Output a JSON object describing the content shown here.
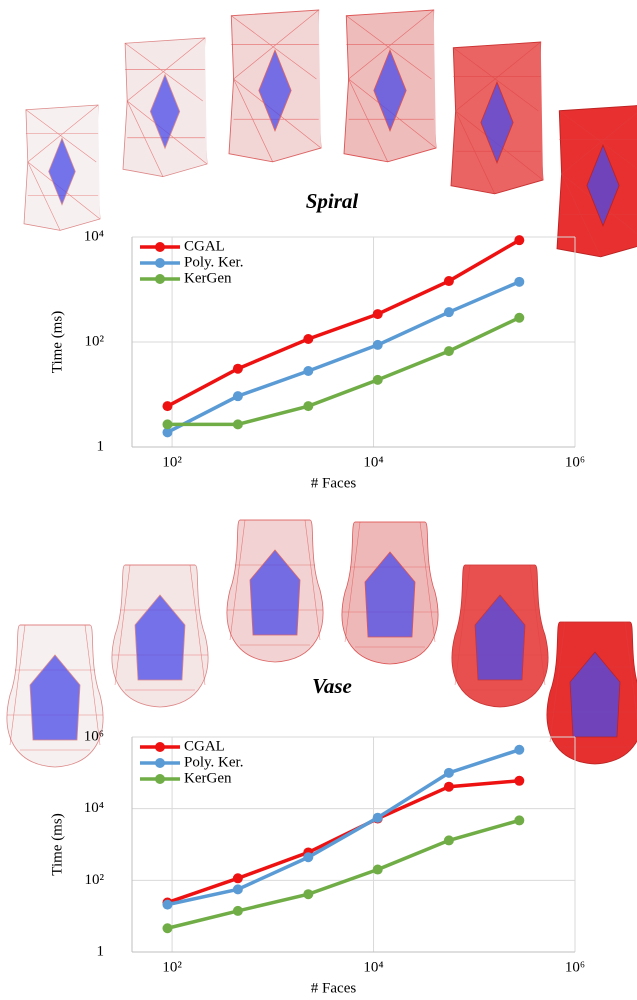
{
  "chart_data": [
    {
      "type": "line",
      "title": "Spiral",
      "x_label": "# Faces",
      "y_label": "Time (ms)",
      "xscale": "log",
      "yscale": "log",
      "grid": true,
      "legend": "upper left",
      "x": [
        90,
        450,
        2250,
        11000,
        56000,
        280000
      ],
      "xlim": [
        40,
        1000000
      ],
      "xticks": [
        {
          "value": 100,
          "label": "10²"
        },
        {
          "value": 10000,
          "label": "10⁴"
        },
        {
          "value": 1000000,
          "label": "10⁶"
        }
      ],
      "ylim": [
        1,
        10000
      ],
      "yticks": [
        1,
        {
          "value": 100,
          "label": "10²"
        },
        {
          "value": 10000,
          "label": "10⁴"
        }
      ],
      "series": [
        {
          "name": "CGAL",
          "color": "#ee1111",
          "values": [
            6,
            31,
            114,
            340,
            1450,
            8700
          ]
        },
        {
          "name": "Poly. Ker.",
          "color": "#5b9bd5",
          "values": [
            1.9,
            9.3,
            28,
            88,
            370,
            1400
          ]
        },
        {
          "name": "KerGen",
          "color": "#70ad47",
          "values": [
            2.7,
            2.7,
            6,
            19,
            67,
            290
          ]
        }
      ]
    },
    {
      "type": "line",
      "title": "Vase",
      "x_label": "# Faces",
      "y_label": "Time (ms)",
      "xscale": "log",
      "yscale": "log",
      "grid": true,
      "legend": "upper left",
      "x": [
        90,
        450,
        2250,
        11000,
        56000,
        280000
      ],
      "xlim": [
        40,
        1000000
      ],
      "xticks": [
        {
          "value": 100,
          "label": "10²"
        },
        {
          "value": 10000,
          "label": "10⁴"
        },
        {
          "value": 1000000,
          "label": "10⁶"
        }
      ],
      "ylim": [
        1,
        1000000
      ],
      "yticks": [
        1,
        {
          "value": 100,
          "label": "10²"
        },
        {
          "value": 10000,
          "label": "10⁴"
        },
        {
          "value": 1000000,
          "label": "10⁶"
        }
      ],
      "series": [
        {
          "name": "CGAL",
          "color": "#ee1111",
          "values": [
            24,
            114,
            600,
            5300,
            41000,
            60000
          ]
        },
        {
          "name": "Poly. Ker.",
          "color": "#5b9bd5",
          "values": [
            21,
            56,
            440,
            5600,
            100000,
            440000
          ]
        },
        {
          "name": "KerGen",
          "color": "#70ad47",
          "values": [
            4.6,
            14,
            41,
            200,
            1300,
            4700
          ]
        }
      ]
    }
  ]
}
